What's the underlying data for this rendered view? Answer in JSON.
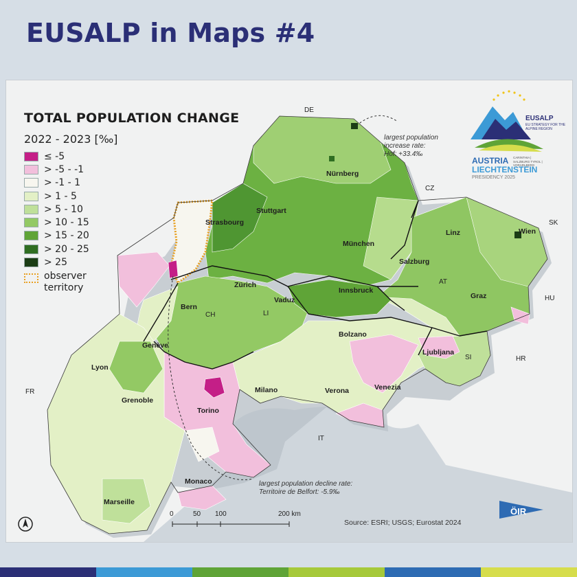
{
  "page": {
    "title": "EUSALP in Maps #4"
  },
  "legend": {
    "title": "TOTAL POPULATION CHANGE",
    "period": "2022 - 2023 [‰]",
    "classes": [
      {
        "label": "≤ -5",
        "color": "#c41f87"
      },
      {
        "label": "> -5 - -1",
        "color": "#f2bfdc"
      },
      {
        "label": "> -1 - 1",
        "color": "#f7f6ef"
      },
      {
        "label": "> 1 - 5",
        "color": "#e3f0c6"
      },
      {
        "label": "> 5 - 10",
        "color": "#bfe09a"
      },
      {
        "label": "> 10 - 15",
        "color": "#93c964"
      },
      {
        "label": "> 15 - 20",
        "color": "#5fa437"
      },
      {
        "label": "> 20 - 25",
        "color": "#2f6e22"
      },
      {
        "label": "> 25",
        "color": "#1b3d15"
      }
    ],
    "observer": {
      "label": "observer territory",
      "color": "#e8a020"
    }
  },
  "cities": {
    "nurnberg": "Nürnberg",
    "stuttgart": "Stuttgart",
    "strasbourg": "Strasbourg",
    "munchen": "München",
    "linz": "Linz",
    "wien": "Wien",
    "salzburg": "Salzburg",
    "zurich": "Zürich",
    "vaduz": "Vaduz",
    "innsbruck": "Innsbruck",
    "graz": "Graz",
    "bern": "Bern",
    "geneve": "Genève",
    "bolzano": "Bolzano",
    "ljubljana": "Ljubljana",
    "lyon": "Lyon",
    "grenoble": "Grenoble",
    "milano": "Milano",
    "verona": "Verona",
    "venezia": "Venezia",
    "torino": "Torino",
    "monaco": "Monaco",
    "marseille": "Marseille"
  },
  "countries": {
    "de": "DE",
    "cz": "CZ",
    "sk": "SK",
    "at": "AT",
    "hu": "HU",
    "ch": "CH",
    "li": "LI",
    "si": "SI",
    "hr": "HR",
    "fr": "FR",
    "it": "IT"
  },
  "annotations": {
    "increase_l1": "largest population",
    "increase_l2": "increase rate:",
    "increase_l3": "Hof: +33.4‰",
    "decline_l1": "largest population decline rate:",
    "decline_l2": "Territoire de Belfort: -5.9‰"
  },
  "scale": {
    "t0": "0",
    "t1": "50",
    "t2": "100",
    "t3": "200 km"
  },
  "source": "Source: ESRI; USGS; Eurostat 2024",
  "logo": {
    "eusalp": "EUSALP",
    "eusalp_sub": "EU STRATEGY FOR THE ALPINE REGION",
    "austria": "AUSTRIA",
    "liechtenstein": "LIECHTENSTEIN",
    "presidency": "PRESIDENCY 2025",
    "regions": "CARINTHIA | SALZBURG TYROL | VORARLBERG",
    "oir": "ÖIR"
  },
  "colors": {
    "title": "#2b2f76",
    "bottom_bar": [
      "#2b2f76",
      "#3c9ad6",
      "#5fa437",
      "#a6c93a",
      "#2e6bb3",
      "#d6dd4c"
    ]
  }
}
